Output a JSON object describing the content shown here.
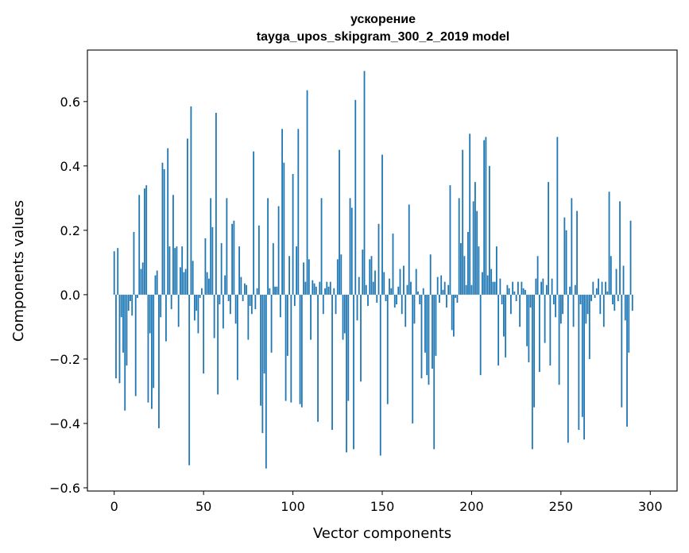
{
  "chart_data": {
    "type": "bar",
    "title": "ускорение",
    "subtitle": "tayga_upos_skipgram_300_2_2019 model",
    "xlabel": "Vector components",
    "ylabel": "Components values",
    "xlim": [
      -15,
      315
    ],
    "ylim": [
      -0.61,
      0.76
    ],
    "xticks": [
      0,
      50,
      100,
      150,
      200,
      250,
      300
    ],
    "yticks": [
      -0.6,
      -0.4,
      -0.2,
      0.0,
      0.2,
      0.4,
      0.6
    ],
    "ytick_labels": [
      "−0.6",
      "−0.4",
      "−0.2",
      "0.0",
      "0.2",
      "0.4",
      "0.6"
    ],
    "bar_color": "#1f77b4",
    "values": [
      0.135,
      -0.26,
      0.145,
      -0.275,
      -0.07,
      -0.18,
      -0.36,
      -0.22,
      -0.05,
      -0.02,
      -0.065,
      0.195,
      -0.315,
      -0.01,
      0.31,
      0.08,
      0.1,
      0.33,
      0.34,
      -0.335,
      -0.12,
      -0.355,
      -0.29,
      0.06,
      0.075,
      -0.415,
      -0.07,
      0.41,
      0.39,
      -0.145,
      0.455,
      0.15,
      -0.045,
      0.31,
      0.145,
      0.15,
      -0.1,
      0.085,
      0.15,
      0.07,
      0.08,
      0.485,
      -0.53,
      0.585,
      0.105,
      -0.08,
      -0.05,
      -0.12,
      -0.01,
      0.02,
      -0.245,
      0.175,
      0.07,
      0.05,
      0.3,
      0.21,
      -0.135,
      0.565,
      -0.31,
      -0.03,
      0.16,
      -0.105,
      0.06,
      0.3,
      -0.02,
      -0.06,
      0.22,
      0.23,
      -0.09,
      -0.265,
      0.15,
      0.055,
      -0.02,
      0.035,
      0.03,
      -0.14,
      -0.035,
      -0.06,
      0.445,
      -0.045,
      0.02,
      0.215,
      -0.345,
      -0.43,
      -0.245,
      -0.54,
      0.3,
      0.02,
      -0.18,
      0.16,
      0.025,
      0.025,
      0.275,
      -0.07,
      0.515,
      0.41,
      -0.33,
      -0.19,
      0.12,
      -0.335,
      0.375,
      -0.035,
      0.15,
      0.515,
      -0.34,
      -0.35,
      0.1,
      0.04,
      0.635,
      0.11,
      -0.14,
      0.045,
      0.035,
      0.025,
      -0.395,
      0.04,
      0.3,
      -0.06,
      0.02,
      0.04,
      0.025,
      0.04,
      -0.42,
      0.02,
      -0.06,
      0.11,
      0.45,
      0.125,
      -0.14,
      -0.12,
      -0.49,
      -0.33,
      0.3,
      0.27,
      -0.48,
      0.605,
      -0.08,
      0.055,
      -0.27,
      0.14,
      0.695,
      0.03,
      -0.035,
      0.11,
      0.12,
      0.04,
      0.075,
      -0.025,
      0.22,
      -0.5,
      0.435,
      0.07,
      -0.02,
      -0.34,
      0.05,
      0.02,
      0.19,
      -0.04,
      -0.03,
      0.025,
      0.08,
      -0.06,
      0.09,
      -0.1,
      0.03,
      0.28,
      0.04,
      -0.4,
      -0.09,
      0.08,
      0.01,
      -0.03,
      -0.26,
      0.02,
      -0.18,
      -0.25,
      -0.28,
      0.125,
      -0.23,
      -0.48,
      -0.19,
      0.055,
      -0.025,
      0.06,
      0.015,
      0.04,
      -0.04,
      0.03,
      0.34,
      -0.11,
      -0.13,
      -0.01,
      -0.025,
      0.3,
      0.16,
      0.45,
      0.12,
      0.03,
      0.195,
      0.5,
      0.03,
      0.29,
      0.35,
      0.26,
      0.15,
      -0.25,
      0.07,
      0.48,
      0.49,
      0.06,
      0.4,
      0.08,
      0.04,
      0.04,
      0.15,
      -0.22,
      0.05,
      -0.03,
      -0.13,
      -0.195,
      0.03,
      0.02,
      -0.06,
      0.04,
      0.01,
      -0.02,
      0.04,
      -0.1,
      0.04,
      0.02,
      0.015,
      -0.16,
      -0.21,
      -0.04,
      -0.48,
      -0.35,
      0.05,
      0.12,
      -0.24,
      0.04,
      0.05,
      -0.15,
      0.03,
      0.35,
      -0.22,
      0.05,
      -0.03,
      -0.07,
      0.49,
      -0.28,
      -0.09,
      -0.06,
      0.24,
      0.2,
      -0.46,
      0.025,
      0.3,
      -0.1,
      0.03,
      0.26,
      -0.42,
      -0.03,
      -0.38,
      -0.45,
      -0.09,
      -0.06,
      -0.2,
      -0.02,
      0.04,
      -0.01,
      0.02,
      0.05,
      -0.06,
      0.04,
      -0.1,
      0.04,
      0.01,
      0.32,
      0.12,
      -0.03,
      -0.05,
      0.08,
      -0.02,
      0.29,
      -0.35,
      0.09,
      -0.08,
      -0.41,
      -0.18,
      0.23,
      -0.05
    ]
  }
}
